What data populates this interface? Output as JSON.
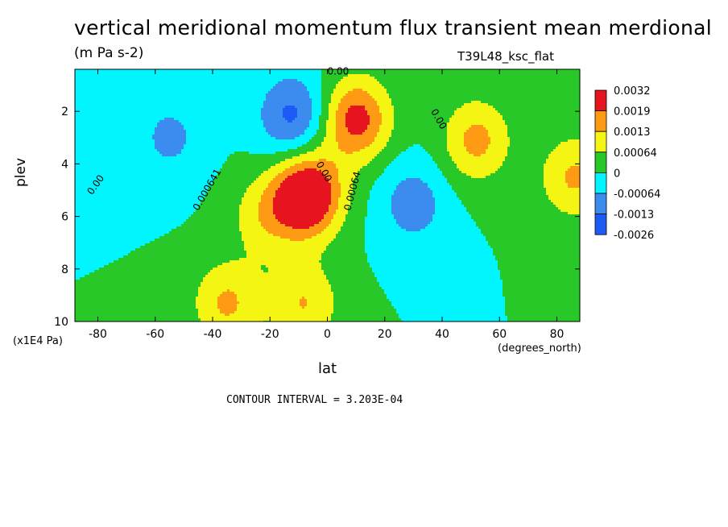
{
  "header": {
    "title": "vertical meridional momentum flux transient mean merdional",
    "units": "(m Pa s-2)",
    "run_id": "T39L48_ksc_flat"
  },
  "footer": {
    "contour_interval": "CONTOUR INTERVAL = 3.203E-04"
  },
  "chart_data": {
    "type": "heatmap",
    "title": "vertical meridional momentum flux transient mean merdional",
    "subtitle": "(m Pa s-2)",
    "xlabel": "lat",
    "x_units": "(degrees_north)",
    "ylabel": "plev",
    "y_units": "(x1E4 Pa)",
    "xlim": [
      -88,
      88
    ],
    "ylim": [
      10,
      0.4
    ],
    "x_ticks": [
      -80,
      -60,
      -40,
      -20,
      0,
      20,
      40,
      60,
      80
    ],
    "x_tick_labels": [
      "-80",
      "-60",
      "-40",
      "-20",
      "0",
      "20",
      "40",
      "60",
      "80"
    ],
    "y_ticks": [
      2,
      4,
      6,
      8,
      10
    ],
    "y_tick_labels": [
      "2",
      "4",
      "6",
      "8",
      "10"
    ],
    "colorbar": {
      "colors": [
        "#e6141e",
        "#ff9a14",
        "#f5f514",
        "#28c828",
        "#00f5ff",
        "#3c8cf0",
        "#1e5af5"
      ],
      "labels": [
        "0.0032",
        "0.0019",
        "0.0013",
        "0.00064",
        "0",
        "-0.00064",
        "-0.0013",
        "-0.0026"
      ]
    },
    "levels": [
      -0.0026,
      -0.0013,
      -0.00064,
      0,
      0.00064,
      0.0013,
      0.0019,
      0.0032
    ],
    "level_colors": [
      "#1e5af5",
      "#3c8cf0",
      "#00f5ff",
      "#28c828",
      "#f5f514",
      "#ff9a14",
      "#e6141e"
    ],
    "contour_labels": [
      "0.00",
      "0.00",
      "0.00",
      "0.000641",
      "0.00",
      "0.00064"
    ],
    "contour_interval": 0.0003203,
    "features": [
      {
        "lat": -22,
        "plev": 6.0,
        "value": 0.001
      },
      {
        "lat": -7,
        "plev": 5.2,
        "value": 0.003
      },
      {
        "lat": -35,
        "plev": 9.3,
        "value": 0.0014
      },
      {
        "lat": -8,
        "plev": 9.3,
        "value": 0.0013
      },
      {
        "lat": -12,
        "plev": 2.2,
        "value": -0.0015
      },
      {
        "lat": 10,
        "plev": 2.3,
        "value": 0.0022
      },
      {
        "lat": 52,
        "plev": 3.1,
        "value": 0.0015
      },
      {
        "lat": 30,
        "plev": 5.5,
        "value": -0.001
      },
      {
        "lat": -55,
        "plev": 3.0,
        "value": -0.0008
      },
      {
        "lat": 86,
        "plev": 4.5,
        "value": 0.0014
      }
    ]
  }
}
